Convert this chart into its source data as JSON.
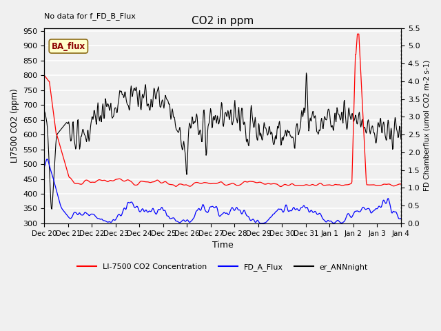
{
  "title": "CO2 in ppm",
  "xlabel": "Time",
  "ylabel_left": "LI7500 CO2 (ppm)",
  "ylabel_right": "FD Chamberflux (umol CO2 m-2 s-1)",
  "annotation_text": "No data for f_FD_B_Flux",
  "legend_box_label": "BA_flux",
  "ylim_left": [
    300,
    960
  ],
  "ylim_right": [
    0.0,
    5.5
  ],
  "yticks_left": [
    300,
    350,
    400,
    450,
    500,
    550,
    600,
    650,
    700,
    750,
    800,
    850,
    900,
    950
  ],
  "yticks_right": [
    0.0,
    0.5,
    1.0,
    1.5,
    2.0,
    2.5,
    3.0,
    3.5,
    4.0,
    4.5,
    5.0,
    5.5
  ],
  "xtick_labels": [
    "Dec 20",
    "Dec 21",
    "Dec 22",
    "Dec 23",
    "Dec 24",
    "Dec 25",
    "Dec 26",
    "Dec 27",
    "Dec 28",
    "Dec 29",
    "Dec 30",
    "Dec 31",
    "Jan 1",
    "Jan 2",
    "Jan 3",
    "Jan 4"
  ],
  "background_color": "#f0f0f0",
  "grid_color": "#ffffff",
  "line_red_color": "#ff0000",
  "line_blue_color": "#0000ff",
  "line_black_color": "#000000",
  "legend_entries": [
    "LI-7500 CO2 Concentration",
    "FD_A_Flux",
    "er_ANNnight"
  ],
  "legend_colors": [
    "#ff0000",
    "#0000ff",
    "#000000"
  ],
  "ba_flux_box_facecolor": "#ffffcc",
  "ba_flux_box_edgecolor": "#8B6914",
  "ba_flux_text_color": "#8B0000"
}
